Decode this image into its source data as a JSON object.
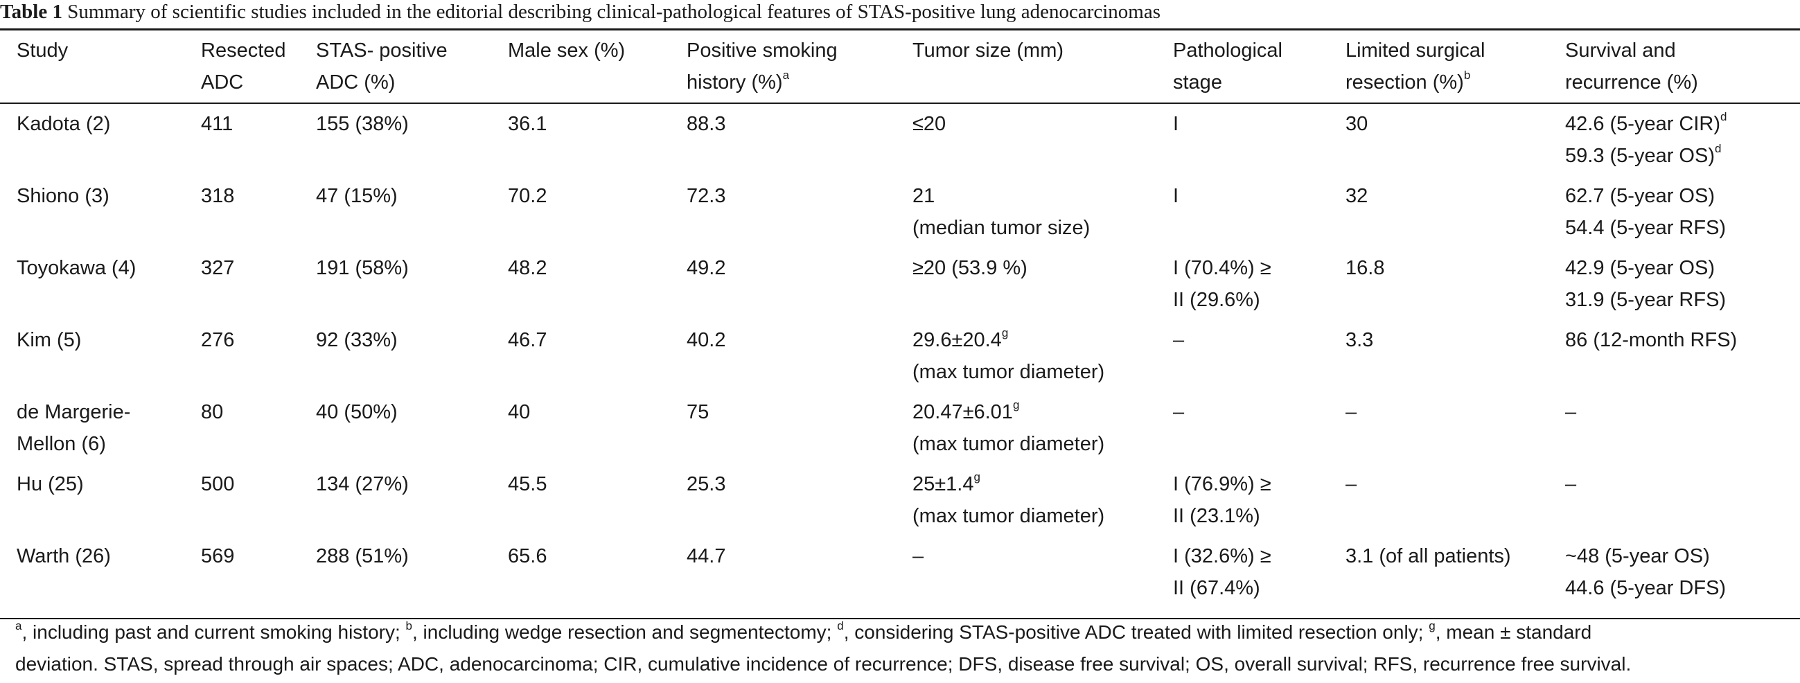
{
  "table": {
    "number": "Table 1",
    "caption": "Summary of scientific studies included in the editorial describing clinical-pathological features of STAS-positive lung adenocarcinomas",
    "headers": [
      {
        "lines": [
          "Study"
        ],
        "sup": ""
      },
      {
        "lines": [
          "Resected",
          "ADC"
        ],
        "sup": ""
      },
      {
        "lines": [
          "STAS- positive",
          "ADC (%)"
        ],
        "sup": ""
      },
      {
        "lines": [
          "Male sex (%)"
        ],
        "sup": ""
      },
      {
        "lines": [
          "Positive smoking",
          "history (%)"
        ],
        "sup": "a"
      },
      {
        "lines": [
          "Tumor size (mm)"
        ],
        "sup": ""
      },
      {
        "lines": [
          "Pathological",
          "stage"
        ],
        "sup": ""
      },
      {
        "lines": [
          "Limited surgical",
          "resection (%)"
        ],
        "sup": "b"
      },
      {
        "lines": [
          "Survival and",
          "recurrence (%)"
        ],
        "sup": ""
      }
    ],
    "rows": [
      {
        "study": [
          "Kadota (2)"
        ],
        "resected": [
          "411"
        ],
        "stas": [
          "155 (38%)"
        ],
        "male": [
          "36.1"
        ],
        "smoking": [
          "88.3"
        ],
        "tumor": [
          {
            "t": "≤20",
            "s": ""
          }
        ],
        "stage": [
          "I"
        ],
        "limited": [
          "30"
        ],
        "survival": [
          {
            "t": "42.6 (5-year CIR)",
            "s": "d"
          },
          {
            "t": "59.3 (5-year OS)",
            "s": "d"
          }
        ]
      },
      {
        "study": [
          "Shiono (3)"
        ],
        "resected": [
          "318"
        ],
        "stas": [
          "47 (15%)"
        ],
        "male": [
          "70.2"
        ],
        "smoking": [
          "72.3"
        ],
        "tumor": [
          {
            "t": "21",
            "s": ""
          },
          {
            "t": "(median tumor size)",
            "s": ""
          }
        ],
        "stage": [
          "I"
        ],
        "limited": [
          "32"
        ],
        "survival": [
          {
            "t": "62.7 (5-year OS)",
            "s": ""
          },
          {
            "t": "54.4 (5-year RFS)",
            "s": ""
          }
        ]
      },
      {
        "study": [
          "Toyokawa (4)"
        ],
        "resected": [
          "327"
        ],
        "stas": [
          "191 (58%)"
        ],
        "male": [
          "48.2"
        ],
        "smoking": [
          "49.2"
        ],
        "tumor": [
          {
            "t": "≥20 (53.9 %)",
            "s": ""
          }
        ],
        "stage": [
          "I (70.4%) ≥",
          "II (29.6%)"
        ],
        "limited": [
          "16.8"
        ],
        "survival": [
          {
            "t": "42.9 (5-year OS)",
            "s": ""
          },
          {
            "t": "31.9 (5-year RFS)",
            "s": ""
          }
        ]
      },
      {
        "study": [
          "Kim (5)"
        ],
        "resected": [
          "276"
        ],
        "stas": [
          "92 (33%)"
        ],
        "male": [
          "46.7"
        ],
        "smoking": [
          "40.2"
        ],
        "tumor": [
          {
            "t": "29.6±20.4",
            "s": "g"
          },
          {
            "t": "(max tumor diameter)",
            "s": ""
          }
        ],
        "stage": [
          "–"
        ],
        "limited": [
          "3.3"
        ],
        "survival": [
          {
            "t": "86 (12-month RFS)",
            "s": ""
          }
        ]
      },
      {
        "study": [
          "de Margerie-",
          "Mellon (6)"
        ],
        "resected": [
          "80"
        ],
        "stas": [
          "40 (50%)"
        ],
        "male": [
          "40"
        ],
        "smoking": [
          "75"
        ],
        "tumor": [
          {
            "t": "20.47±6.01",
            "s": "g"
          },
          {
            "t": "(max tumor diameter)",
            "s": ""
          }
        ],
        "stage": [
          "–"
        ],
        "limited": [
          "–"
        ],
        "survival": [
          {
            "t": "–",
            "s": ""
          }
        ]
      },
      {
        "study": [
          "Hu (25)"
        ],
        "resected": [
          "500"
        ],
        "stas": [
          "134 (27%)"
        ],
        "male": [
          "45.5"
        ],
        "smoking": [
          "25.3"
        ],
        "tumor": [
          {
            "t": "25±1.4",
            "s": "g"
          },
          {
            "t": "(max tumor diameter)",
            "s": ""
          }
        ],
        "stage": [
          "I (76.9%) ≥",
          "II (23.1%)"
        ],
        "limited": [
          "–"
        ],
        "survival": [
          {
            "t": "–",
            "s": ""
          }
        ]
      },
      {
        "study": [
          "Warth (26)"
        ],
        "resected": [
          "569"
        ],
        "stas": [
          "288 (51%)"
        ],
        "male": [
          "65.6"
        ],
        "smoking": [
          "44.7"
        ],
        "tumor": [
          {
            "t": "–",
            "s": ""
          }
        ],
        "stage": [
          "I (32.6%) ≥",
          "II (67.4%)"
        ],
        "limited": [
          "3.1 (of all patients)"
        ],
        "survival": [
          {
            "t": "~48 (5-year OS)",
            "s": ""
          },
          {
            "t": "44.6 (5-year DFS)",
            "s": ""
          }
        ]
      }
    ],
    "footnote": {
      "notes": [
        {
          "mark": "a",
          "text": ", including past and current smoking history; "
        },
        {
          "mark": "b",
          "text": ", including wedge resection and segmentectomy; "
        },
        {
          "mark": "d",
          "text": ", considering STAS-positive ADC treated with limited resection only; "
        },
        {
          "mark": "g",
          "text": ", mean ± standard"
        }
      ],
      "line2": "deviation. STAS, spread through air spaces; ADC, adenocarcinoma; CIR, cumulative incidence of recurrence; DFS, disease free survival; OS, overall survival; RFS, recurrence free survival."
    }
  }
}
